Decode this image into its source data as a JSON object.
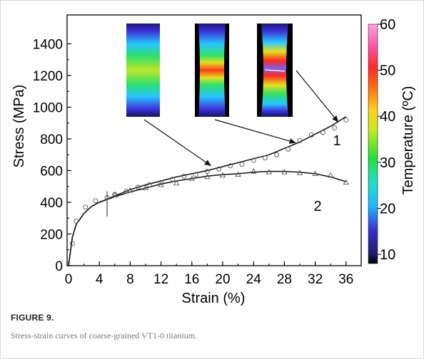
{
  "figure": {
    "label": "FIGURE 9.",
    "caption": "Stress-strain curves of coarse-grained VT1-0 titanium."
  },
  "chart_data": {
    "type": "line",
    "xlabel": "Strain (%)",
    "ylabel": "Stress (MPa)",
    "xlim": [
      0,
      37.5
    ],
    "ylim": [
      0,
      1550
    ],
    "xticks": [
      "0",
      "4",
      "8",
      "12",
      "16",
      "20",
      "24",
      "28",
      "32",
      "36"
    ],
    "yticks": [
      "0",
      "200",
      "400",
      "600",
      "800",
      "1000",
      "1200",
      "1400"
    ],
    "grid": false,
    "series": [
      {
        "name": "1",
        "marker": "circle",
        "line": [
          [
            0,
            0
          ],
          [
            0.5,
            180
          ],
          [
            1,
            260
          ],
          [
            2,
            330
          ],
          [
            3,
            375
          ],
          [
            4,
            400
          ],
          [
            6,
            440
          ],
          [
            8,
            480
          ],
          [
            10,
            510
          ],
          [
            12,
            535
          ],
          [
            14,
            560
          ],
          [
            16,
            580
          ],
          [
            18,
            600
          ],
          [
            20,
            625
          ],
          [
            22,
            650
          ],
          [
            24,
            675
          ],
          [
            26,
            700
          ],
          [
            28,
            740
          ],
          [
            30,
            780
          ],
          [
            32,
            830
          ],
          [
            34,
            880
          ],
          [
            36,
            940
          ]
        ],
        "points": [
          [
            0.5,
            140
          ],
          [
            1,
            280
          ],
          [
            2.2,
            370
          ],
          [
            3.5,
            410
          ],
          [
            5,
            430
          ],
          [
            6,
            450
          ],
          [
            7.5,
            470
          ],
          [
            9,
            495
          ],
          [
            10.5,
            510
          ],
          [
            12,
            525
          ],
          [
            13.5,
            545
          ],
          [
            15,
            565
          ],
          [
            16.5,
            575
          ],
          [
            18,
            595
          ],
          [
            19.5,
            610
          ],
          [
            21,
            630
          ],
          [
            22.5,
            640
          ],
          [
            24,
            665
          ],
          [
            25.5,
            680
          ],
          [
            27,
            700
          ],
          [
            28.5,
            735
          ],
          [
            30,
            790
          ],
          [
            31.5,
            825
          ],
          [
            33,
            840
          ],
          [
            34.5,
            870
          ],
          [
            36,
            920
          ]
        ]
      },
      {
        "name": "2",
        "marker": "triangle",
        "line": [
          [
            0,
            0
          ],
          [
            0.5,
            180
          ],
          [
            1,
            260
          ],
          [
            2,
            330
          ],
          [
            3,
            375
          ],
          [
            4,
            400
          ],
          [
            6,
            435
          ],
          [
            8,
            465
          ],
          [
            10,
            490
          ],
          [
            12,
            515
          ],
          [
            14,
            535
          ],
          [
            16,
            550
          ],
          [
            18,
            565
          ],
          [
            20,
            575
          ],
          [
            22,
            580
          ],
          [
            24,
            590
          ],
          [
            26,
            595
          ],
          [
            28,
            595
          ],
          [
            30,
            590
          ],
          [
            32,
            580
          ],
          [
            34,
            560
          ],
          [
            36,
            530
          ]
        ],
        "points": [
          [
            6,
            445
          ],
          [
            8,
            475
          ],
          [
            10,
            490
          ],
          [
            12,
            510
          ],
          [
            14,
            520
          ],
          [
            16,
            550
          ],
          [
            18,
            560
          ],
          [
            20,
            570
          ],
          [
            22,
            575
          ],
          [
            24,
            595
          ],
          [
            26,
            590
          ],
          [
            28,
            590
          ],
          [
            30,
            585
          ],
          [
            32,
            580
          ],
          [
            34,
            570
          ],
          [
            36,
            525
          ]
        ]
      }
    ],
    "marker_line": {
      "x": 5,
      "y_from": 310,
      "y_to": 470
    },
    "colorbar": {
      "label": "Temperature (ºC)",
      "range": [
        8,
        60
      ],
      "ticks": [
        "10",
        "20",
        "30",
        "40",
        "50",
        "60"
      ],
      "tick_values": [
        10,
        20,
        30,
        40,
        50,
        60
      ]
    },
    "arrows": [
      {
        "from_inset": 0,
        "to": [
          18.5,
          630
        ]
      },
      {
        "from_inset": 1,
        "to": [
          29.5,
          775
        ]
      },
      {
        "from_inset": 2,
        "to": [
          35,
          905
        ]
      }
    ]
  }
}
